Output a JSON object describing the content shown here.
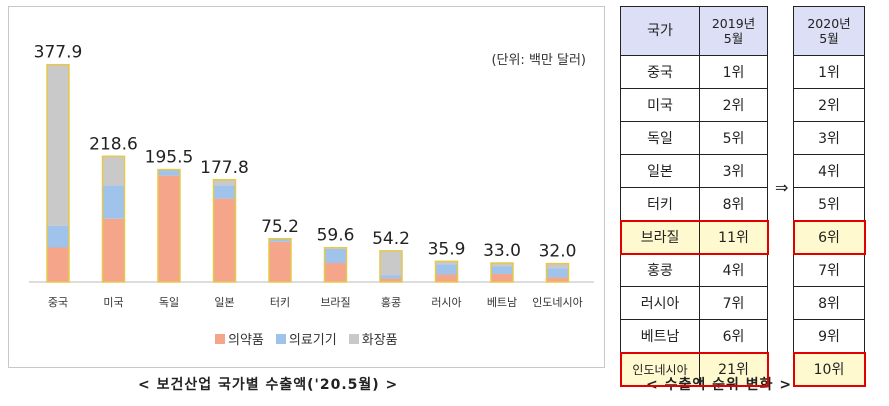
{
  "chart_data": {
    "type": "bar",
    "stacked": true,
    "categories": [
      "중국",
      "미국",
      "독일",
      "일본",
      "터키",
      "브라질",
      "홍콩",
      "러시아",
      "베트남",
      "인도네시아"
    ],
    "totals": [
      377.9,
      218.6,
      195.5,
      177.8,
      75.2,
      59.6,
      54.2,
      35.9,
      33.0,
      32.0
    ],
    "total_labels": [
      "377.9",
      "218.6",
      "195.5",
      "177.8",
      "75.2",
      "59.6",
      "54.2",
      "35.9",
      "33.0",
      "32.0"
    ],
    "series": [
      {
        "name": "의약품",
        "color": "#f5a68a",
        "values": [
          60,
          110,
          185,
          145,
          70,
          33,
          6,
          13,
          14,
          8
        ]
      },
      {
        "name": "의료기기",
        "color": "#9fc3ea",
        "values": [
          38,
          58,
          10,
          23,
          5,
          25,
          6,
          18,
          13,
          16
        ]
      },
      {
        "name": "화장품",
        "color": "#c9c9c9",
        "values": [
          279.9,
          50.6,
          0.5,
          9.8,
          0.2,
          1.6,
          42.2,
          4.9,
          6.0,
          8.0
        ]
      }
    ],
    "bar_outline": "#e6c84a",
    "unit_note": "(단위: 백만 달러)",
    "legend_position": "bottom",
    "ylim": [
      0,
      400
    ]
  },
  "captions": {
    "left": "< 보건산업 국가별 수출액('20.5월) >",
    "right": "< 수출액 순위 변화 >"
  },
  "rank_table": {
    "header_country": "국가",
    "header_2019": [
      "2019년",
      "5월"
    ],
    "header_2020": [
      "2020년",
      "5월"
    ],
    "arrow": "⇒",
    "rows": [
      {
        "country": "중국",
        "rank2019": "1위",
        "rank2020": "1위",
        "highlight": false
      },
      {
        "country": "미국",
        "rank2019": "2위",
        "rank2020": "2위",
        "highlight": false
      },
      {
        "country": "독일",
        "rank2019": "5위",
        "rank2020": "3위",
        "highlight": false
      },
      {
        "country": "일본",
        "rank2019": "3위",
        "rank2020": "4위",
        "highlight": false
      },
      {
        "country": "터키",
        "rank2019": "8위",
        "rank2020": "5위",
        "highlight": false
      },
      {
        "country": "브라질",
        "rank2019": "11위",
        "rank2020": "6위",
        "highlight": true
      },
      {
        "country": "홍콩",
        "rank2019": "4위",
        "rank2020": "7위",
        "highlight": false
      },
      {
        "country": "러시아",
        "rank2019": "7위",
        "rank2020": "8위",
        "highlight": false
      },
      {
        "country": "베트남",
        "rank2019": "6위",
        "rank2020": "9위",
        "highlight": false
      },
      {
        "country": "인도네시아",
        "rank2019": "21위",
        "rank2020": "10위",
        "highlight": true
      }
    ]
  }
}
